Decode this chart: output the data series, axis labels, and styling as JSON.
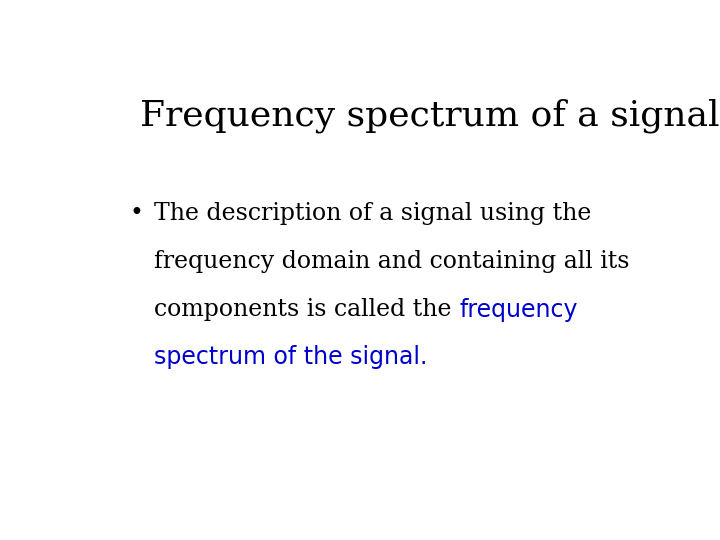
{
  "title": "Frequency spectrum of a signal",
  "title_color": "#000000",
  "title_fontsize": 26,
  "title_font": "DejaVu Serif",
  "background_color": "#ffffff",
  "bullet_char": "•",
  "body_fontsize": 17,
  "body_font_black": "DejaVu Serif",
  "body_font_blue": "DejaVu Sans",
  "blue_color": "#0000cc",
  "black_color": "#000000",
  "line1": "The description of a signal using the",
  "line2": "frequency domain and containing all its",
  "line3_black": "components is called the ",
  "line3_blue": "frequency",
  "line4_blue": "spectrum of the signal."
}
